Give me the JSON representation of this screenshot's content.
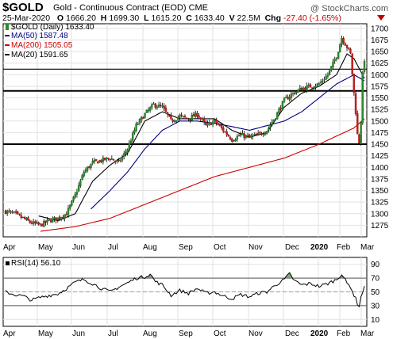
{
  "header": {
    "symbol": "$GOLD",
    "description": "Gold - Continuous Contract (EOD)",
    "exchange": "CME",
    "copyright": "@ StockCharts.com",
    "date": "25-Mar-2020",
    "open_label": "O",
    "open": "1666.20",
    "high_label": "H",
    "high": "1699.30",
    "low_label": "L",
    "low": "1615.20",
    "close_label": "C",
    "close": "1633.40",
    "volume_label": "V",
    "volume": "22.5M",
    "change_label": "Chg",
    "change": "-27.40 (-1.65%)",
    "change_icon": "triangle-down-icon",
    "colors": {
      "negative": "#c00000"
    }
  },
  "chart_data": [
    {
      "type": "candlestick",
      "title": "$GOLD (Daily) 1633.40",
      "ylim": [
        1250,
        1710
      ],
      "y_ticks": [
        1275,
        1300,
        1325,
        1350,
        1375,
        1400,
        1425,
        1450,
        1475,
        1500,
        1525,
        1550,
        1575,
        1600,
        1625,
        1650,
        1675,
        1700
      ],
      "x_ticks": [
        "Apr",
        "May",
        "Jun",
        "Jul",
        "Aug",
        "Sep",
        "Oct",
        "Nov",
        "Dec",
        "2020",
        "Feb",
        "Mar"
      ],
      "grid": true,
      "legend": "top-left",
      "series": [
        {
          "name": "$GOLD (Daily) 1633.40",
          "color": "#000000",
          "key_points": [
            [
              0,
              1305
            ],
            [
              5,
              1300
            ],
            [
              10,
              1290
            ],
            [
              15,
              1280
            ],
            [
              20,
              1275
            ],
            [
              25,
              1285
            ],
            [
              30,
              1290
            ],
            [
              35,
              1300
            ],
            [
              40,
              1340
            ],
            [
              45,
              1390
            ],
            [
              50,
              1410
            ],
            [
              55,
              1415
            ],
            [
              60,
              1420
            ],
            [
              65,
              1410
            ],
            [
              70,
              1440
            ],
            [
              75,
              1490
            ],
            [
              80,
              1515
            ],
            [
              85,
              1535
            ],
            [
              90,
              1530
            ],
            [
              95,
              1500
            ],
            [
              100,
              1510
            ],
            [
              105,
              1505
            ],
            [
              110,
              1515
            ],
            [
              115,
              1490
            ],
            [
              120,
              1500
            ],
            [
              125,
              1480
            ],
            [
              130,
              1460
            ],
            [
              135,
              1470
            ],
            [
              140,
              1465
            ],
            [
              145,
              1470
            ],
            [
              150,
              1480
            ],
            [
              155,
              1510
            ],
            [
              160,
              1545
            ],
            [
              165,
              1560
            ],
            [
              170,
              1570
            ],
            [
              175,
              1575
            ],
            [
              180,
              1580
            ],
            [
              185,
              1600
            ],
            [
              190,
              1640
            ],
            [
              193,
              1680
            ],
            [
              196,
              1660
            ],
            [
              198,
              1645
            ],
            [
              200,
              1560
            ],
            [
              201,
              1520
            ],
            [
              202,
              1470
            ],
            [
              203,
              1455
            ],
            [
              204,
              1500
            ],
            [
              205,
              1600
            ],
            [
              206,
              1633
            ]
          ]
        },
        {
          "name": "MA(50) 1587.48",
          "color": "#000080",
          "key_points": [
            [
              49,
              1310
            ],
            [
              60,
              1350
            ],
            [
              70,
              1390
            ],
            [
              80,
              1440
            ],
            [
              90,
              1480
            ],
            [
              100,
              1500
            ],
            [
              110,
              1500
            ],
            [
              120,
              1495
            ],
            [
              130,
              1488
            ],
            [
              140,
              1480
            ],
            [
              150,
              1490
            ],
            [
              160,
              1500
            ],
            [
              170,
              1520
            ],
            [
              180,
              1550
            ],
            [
              190,
              1580
            ],
            [
              200,
              1600
            ],
            [
              206,
              1587
            ]
          ]
        },
        {
          "name": "MA(200) 1505.05",
          "color": "#cc0000",
          "key_points": [
            [
              20,
              1262
            ],
            [
              40,
              1272
            ],
            [
              60,
              1290
            ],
            [
              80,
              1320
            ],
            [
              100,
              1350
            ],
            [
              120,
              1380
            ],
            [
              140,
              1400
            ],
            [
              160,
              1420
            ],
            [
              180,
              1450
            ],
            [
              200,
              1485
            ],
            [
              206,
              1505
            ]
          ]
        },
        {
          "name": "MA(20) 1591.65",
          "color": "#000000",
          "key_points": [
            [
              19,
              1295
            ],
            [
              30,
              1285
            ],
            [
              40,
              1300
            ],
            [
              50,
              1370
            ],
            [
              60,
              1405
            ],
            [
              70,
              1430
            ],
            [
              80,
              1500
            ],
            [
              90,
              1520
            ],
            [
              100,
              1505
            ],
            [
              110,
              1505
            ],
            [
              120,
              1505
            ],
            [
              130,
              1480
            ],
            [
              140,
              1465
            ],
            [
              150,
              1475
            ],
            [
              160,
              1530
            ],
            [
              170,
              1560
            ],
            [
              180,
              1575
            ],
            [
              190,
              1600
            ],
            [
              196,
              1645
            ],
            [
              200,
              1635
            ],
            [
              206,
              1592
            ]
          ]
        }
      ],
      "horizontal_levels": [
        1450,
        1565,
        1612
      ]
    },
    {
      "type": "line",
      "title": "RSI(14) 56.10",
      "ylim": [
        0,
        100
      ],
      "y_ticks": [
        10,
        30,
        50,
        70,
        90
      ],
      "x_ticks": [
        "Apr",
        "May",
        "Jun",
        "Jul",
        "Aug",
        "Sep",
        "Oct",
        "Nov",
        "Dec",
        "2020",
        "Feb",
        "Mar"
      ],
      "reference_levels": [
        30,
        50,
        70
      ],
      "colors": {
        "line": "#000000",
        "overbought_fill": "#669966"
      },
      "series": [
        {
          "name": "RSI(14) 56.10",
          "key_points": [
            [
              0,
              50
            ],
            [
              5,
              46
            ],
            [
              10,
              44
            ],
            [
              15,
              38
            ],
            [
              20,
              42
            ],
            [
              25,
              45
            ],
            [
              30,
              47
            ],
            [
              35,
              55
            ],
            [
              40,
              64
            ],
            [
              45,
              68
            ],
            [
              50,
              62
            ],
            [
              55,
              55
            ],
            [
              60,
              50
            ],
            [
              65,
              57
            ],
            [
              70,
              63
            ],
            [
              75,
              70
            ],
            [
              80,
              72
            ],
            [
              83,
              76
            ],
            [
              86,
              65
            ],
            [
              90,
              60
            ],
            [
              95,
              45
            ],
            [
              100,
              52
            ],
            [
              105,
              48
            ],
            [
              110,
              55
            ],
            [
              115,
              48
            ],
            [
              120,
              50
            ],
            [
              125,
              44
            ],
            [
              130,
              40
            ],
            [
              135,
              46
            ],
            [
              140,
              43
            ],
            [
              145,
              48
            ],
            [
              150,
              50
            ],
            [
              155,
              60
            ],
            [
              160,
              68
            ],
            [
              163,
              76
            ],
            [
              166,
              66
            ],
            [
              170,
              60
            ],
            [
              175,
              62
            ],
            [
              180,
              58
            ],
            [
              185,
              62
            ],
            [
              190,
              68
            ],
            [
              193,
              76
            ],
            [
              196,
              62
            ],
            [
              198,
              58
            ],
            [
              200,
              45
            ],
            [
              201,
              40
            ],
            [
              202,
              33
            ],
            [
              203,
              30
            ],
            [
              204,
              42
            ],
            [
              205,
              50
            ],
            [
              206,
              56
            ]
          ]
        }
      ]
    }
  ]
}
